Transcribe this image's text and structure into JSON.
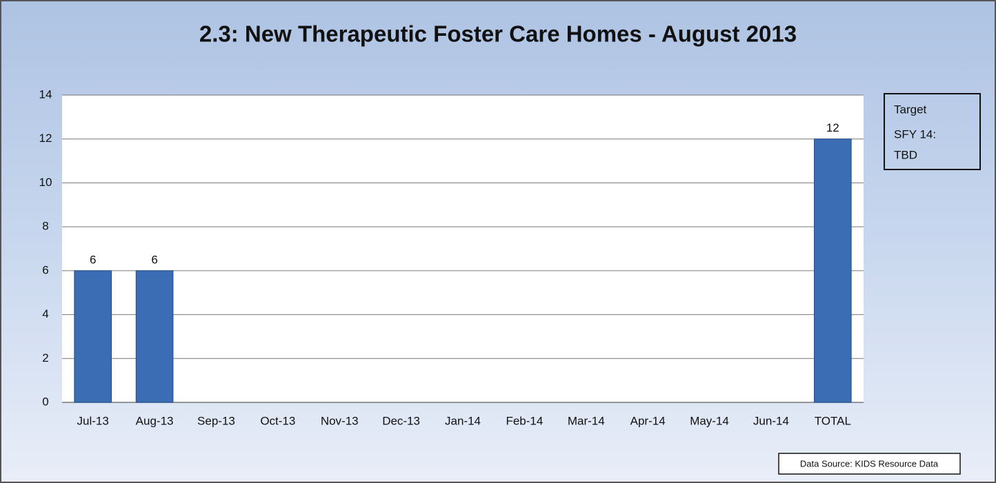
{
  "chart_data": {
    "type": "bar",
    "title": "2.3: New Therapeutic Foster Care Homes - August 2013",
    "categories": [
      "Jul-13",
      "Aug-13",
      "Sep-13",
      "Oct-13",
      "Nov-13",
      "Dec-13",
      "Jan-14",
      "Feb-14",
      "Mar-14",
      "Apr-14",
      "May-14",
      "Jun-14",
      "TOTAL"
    ],
    "values": [
      6,
      6,
      null,
      null,
      null,
      null,
      null,
      null,
      null,
      null,
      null,
      null,
      12
    ],
    "color": "#3a6db3",
    "ylim": [
      0,
      14
    ],
    "yticks": [
      0,
      2,
      4,
      6,
      8,
      10,
      12,
      14
    ],
    "grid": true,
    "annotations": [
      "Target",
      "SFY 14:",
      "TBD"
    ],
    "source": "Data Source: KIDS Resource Data"
  }
}
